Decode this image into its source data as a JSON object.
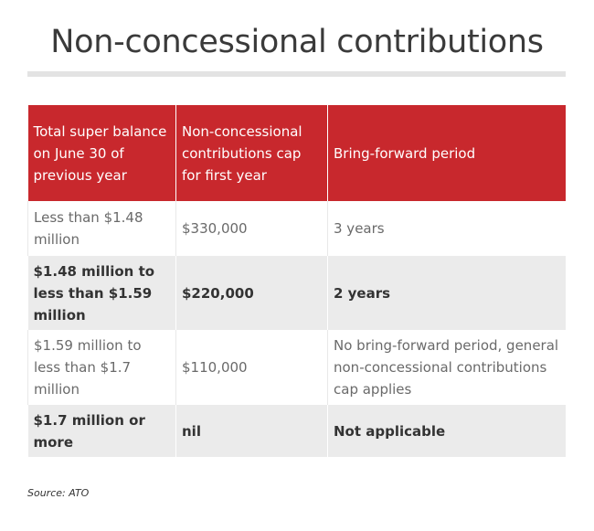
{
  "title": "Non-concessional contributions",
  "chart_data": {
    "type": "table",
    "columns": [
      "Total super balance on June 30 of previous year",
      "Non-concessional contributions cap for first year",
      "Bring-forward period"
    ],
    "rows": [
      [
        "Less than $1.48 million",
        "$330,000",
        "3 years"
      ],
      [
        "$1.48 million to less than $1.59 million",
        "$220,000",
        "2 years"
      ],
      [
        "$1.59 million to less than $1.7 million",
        "$110,000",
        "No bring-forward period, general non-concessional contributions cap applies"
      ],
      [
        "$1.7 million or more",
        "nil",
        "Not applicable"
      ]
    ]
  },
  "source": "Source: ATO",
  "colors": {
    "header": "#c8282d",
    "alt_row": "#ebebeb",
    "rule": "#e3e3e3"
  }
}
